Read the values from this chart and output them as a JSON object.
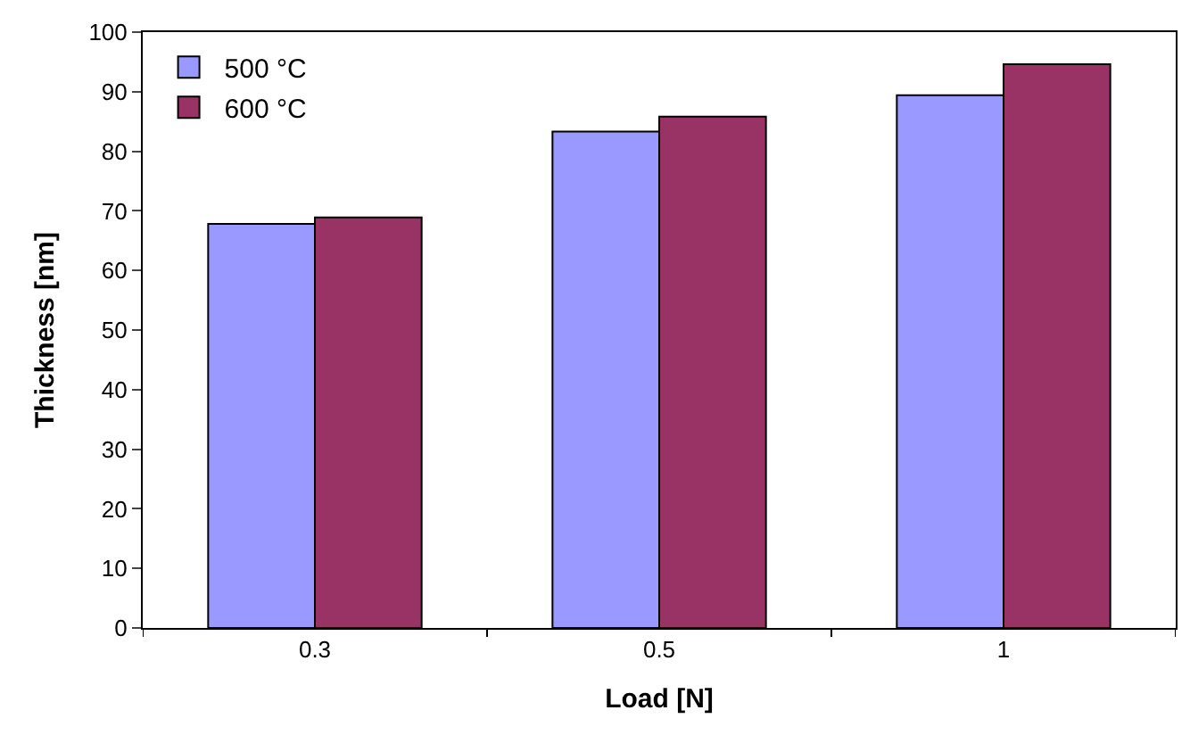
{
  "chart_data": {
    "type": "bar",
    "xlabel": "Load [N]",
    "ylabel": "Thickness [nm]",
    "categories": [
      "0.3",
      "0.5",
      "1"
    ],
    "series": [
      {
        "name": "500 °C",
        "color": "#9999ff",
        "values": [
          67.8,
          83.3,
          89.4
        ]
      },
      {
        "name": "600 °C",
        "color": "#993366",
        "values": [
          68.9,
          85.8,
          94.6
        ]
      }
    ],
    "ylim": [
      0,
      100
    ],
    "yticks": [
      0,
      10,
      20,
      30,
      40,
      50,
      60,
      70,
      80,
      90,
      100
    ],
    "grid": false,
    "legend": "top left"
  }
}
